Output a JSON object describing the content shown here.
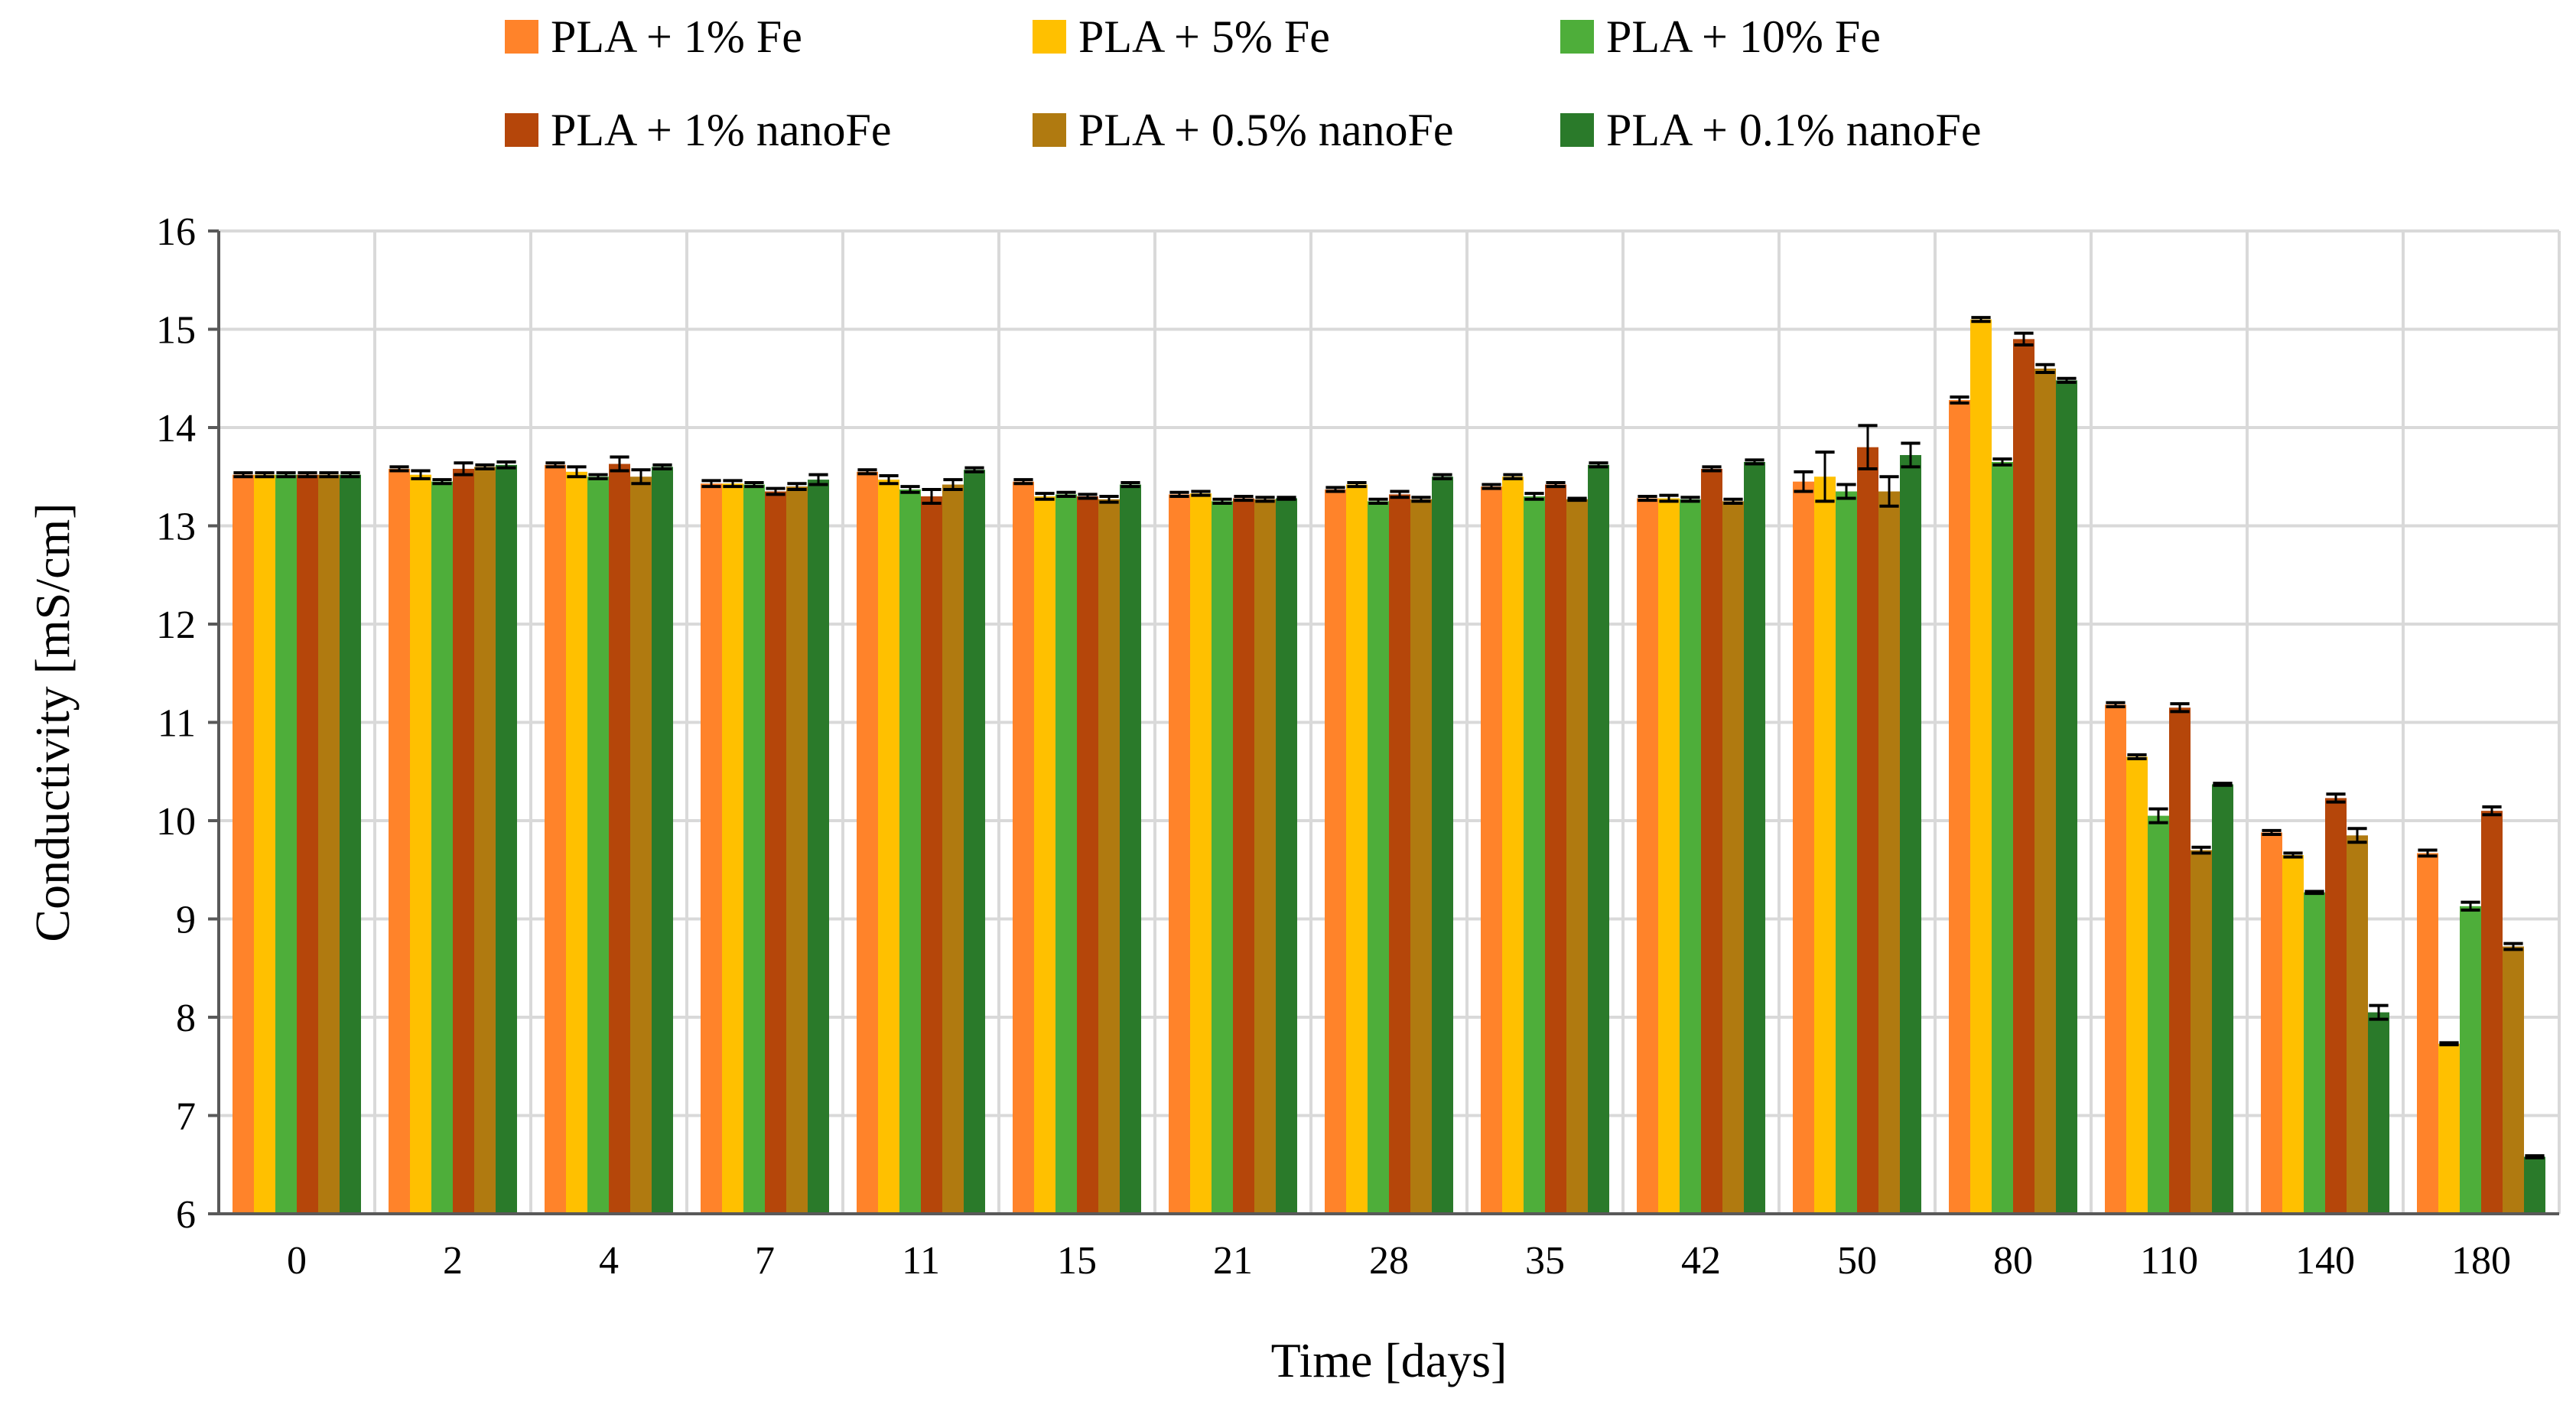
{
  "chart_data": {
    "type": "bar",
    "title": "",
    "xlabel": "Time [days]",
    "ylabel": "Conductivity [mS/cm]",
    "ylim": [
      6,
      16
    ],
    "yticks": [
      "6",
      "7",
      "8",
      "9",
      "10",
      "11",
      "12",
      "13",
      "14",
      "15",
      "16"
    ],
    "grid": true,
    "legend_position": "top-center",
    "categories": [
      "0",
      "2",
      "4",
      "7",
      "11",
      "15",
      "21",
      "28",
      "35",
      "42",
      "50",
      "80",
      "110",
      "140",
      "180"
    ],
    "series": [
      {
        "name": "PLA + 1% Fe",
        "color": "#ff832a",
        "values": [
          13.52,
          13.58,
          13.62,
          13.43,
          13.55,
          13.45,
          13.32,
          13.37,
          13.4,
          13.28,
          13.45,
          14.28,
          11.18,
          9.88,
          9.67
        ],
        "errors": [
          0.02,
          0.02,
          0.02,
          0.03,
          0.02,
          0.02,
          0.02,
          0.02,
          0.02,
          0.02,
          0.1,
          0.03,
          0.02,
          0.02,
          0.03
        ]
      },
      {
        "name": "PLA + 5% Fe",
        "color": "#ffc000",
        "values": [
          13.52,
          13.52,
          13.55,
          13.43,
          13.47,
          13.3,
          13.33,
          13.42,
          13.5,
          13.28,
          13.5,
          15.1,
          10.65,
          9.65,
          7.73
        ],
        "errors": [
          0.02,
          0.04,
          0.05,
          0.03,
          0.04,
          0.03,
          0.02,
          0.02,
          0.02,
          0.03,
          0.25,
          0.02,
          0.02,
          0.02,
          0.01
        ]
      },
      {
        "name": "PLA + 10% Fe",
        "color": "#4eae3a",
        "values": [
          13.52,
          13.45,
          13.5,
          13.42,
          13.37,
          13.32,
          13.25,
          13.25,
          13.3,
          13.27,
          13.35,
          13.65,
          10.05,
          9.27,
          9.13
        ],
        "errors": [
          0.02,
          0.02,
          0.02,
          0.02,
          0.03,
          0.02,
          0.02,
          0.02,
          0.03,
          0.02,
          0.07,
          0.03,
          0.07,
          0.01,
          0.04
        ]
      },
      {
        "name": "PLA + 1% nanoFe",
        "color": "#b5460a",
        "values": [
          13.52,
          13.58,
          13.63,
          13.35,
          13.3,
          13.3,
          13.28,
          13.32,
          13.42,
          13.58,
          13.8,
          14.9,
          11.15,
          10.23,
          10.1
        ],
        "errors": [
          0.02,
          0.06,
          0.07,
          0.03,
          0.07,
          0.02,
          0.02,
          0.03,
          0.02,
          0.02,
          0.22,
          0.06,
          0.04,
          0.04,
          0.04
        ]
      },
      {
        "name": "PLA + 0.5% nanoFe",
        "color": "#b07a10",
        "values": [
          13.52,
          13.6,
          13.5,
          13.4,
          13.42,
          13.27,
          13.27,
          13.27,
          13.27,
          13.25,
          13.35,
          14.6,
          9.7,
          9.85,
          8.72
        ],
        "errors": [
          0.02,
          0.02,
          0.07,
          0.03,
          0.05,
          0.03,
          0.02,
          0.02,
          0.01,
          0.02,
          0.15,
          0.04,
          0.03,
          0.07,
          0.03
        ]
      },
      {
        "name": "PLA + 0.1% nanoFe",
        "color": "#2a7a2a",
        "values": [
          13.52,
          13.62,
          13.6,
          13.47,
          13.57,
          13.42,
          13.28,
          13.5,
          13.62,
          13.65,
          13.72,
          14.48,
          10.37,
          8.05,
          6.58
        ],
        "errors": [
          0.02,
          0.03,
          0.02,
          0.05,
          0.02,
          0.02,
          0.01,
          0.02,
          0.02,
          0.02,
          0.12,
          0.02,
          0.01,
          0.07,
          0.01
        ]
      }
    ]
  }
}
